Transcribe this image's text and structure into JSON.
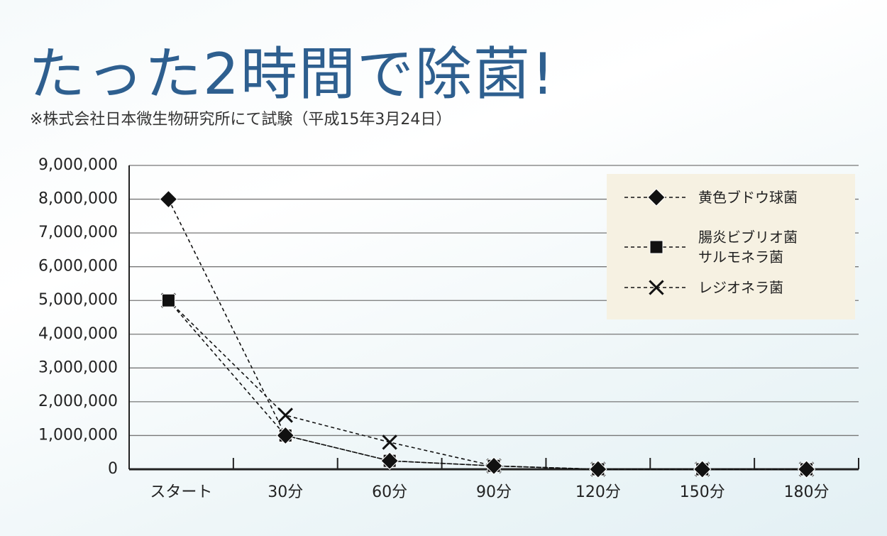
{
  "chart_data": {
    "type": "line",
    "title": "たった2時間で除菌!",
    "subtitle": "※株式会社日本微生物研究所にて試験（平成15年3月24日）",
    "categories": [
      "スタート",
      "30分",
      "60分",
      "90分",
      "120分",
      "150分",
      "180分"
    ],
    "series": [
      {
        "name": "黄色ブドウ球菌",
        "color": "#111111",
        "marker": "diamond",
        "values": [
          8000000,
          1000000,
          250000,
          100000,
          0,
          0,
          0
        ]
      },
      {
        "name": "腸炎ビブリオ菌\nサルモネラ菌",
        "color": "#111111",
        "marker": "square",
        "values": [
          5000000,
          1000000,
          250000,
          100000,
          0,
          0,
          0
        ]
      },
      {
        "name": "レジオネラ菌",
        "color": "#111111",
        "marker": "x",
        "values": [
          5000000,
          1600000,
          800000,
          100000,
          0,
          0,
          0
        ]
      }
    ],
    "ylim": [
      0,
      9000000
    ],
    "yticks": [
      0,
      {
        "value": 1000000,
        "label": "1,000,000"
      },
      {
        "value": 2000000,
        "label": "2,000,000"
      },
      {
        "value": 3000000,
        "label": "3,000,000"
      },
      {
        "value": 4000000,
        "label": "4,000,000"
      },
      {
        "value": 5000000,
        "label": "5,000,000"
      },
      {
        "value": 6000000,
        "label": "6,000,000"
      },
      {
        "value": 7000000,
        "label": "7,000,000"
      },
      {
        "value": 8000000,
        "label": "8,000,000"
      },
      {
        "value": 9000000,
        "label": "9,000,000"
      }
    ],
    "grid": true,
    "legend": "upper-right"
  }
}
